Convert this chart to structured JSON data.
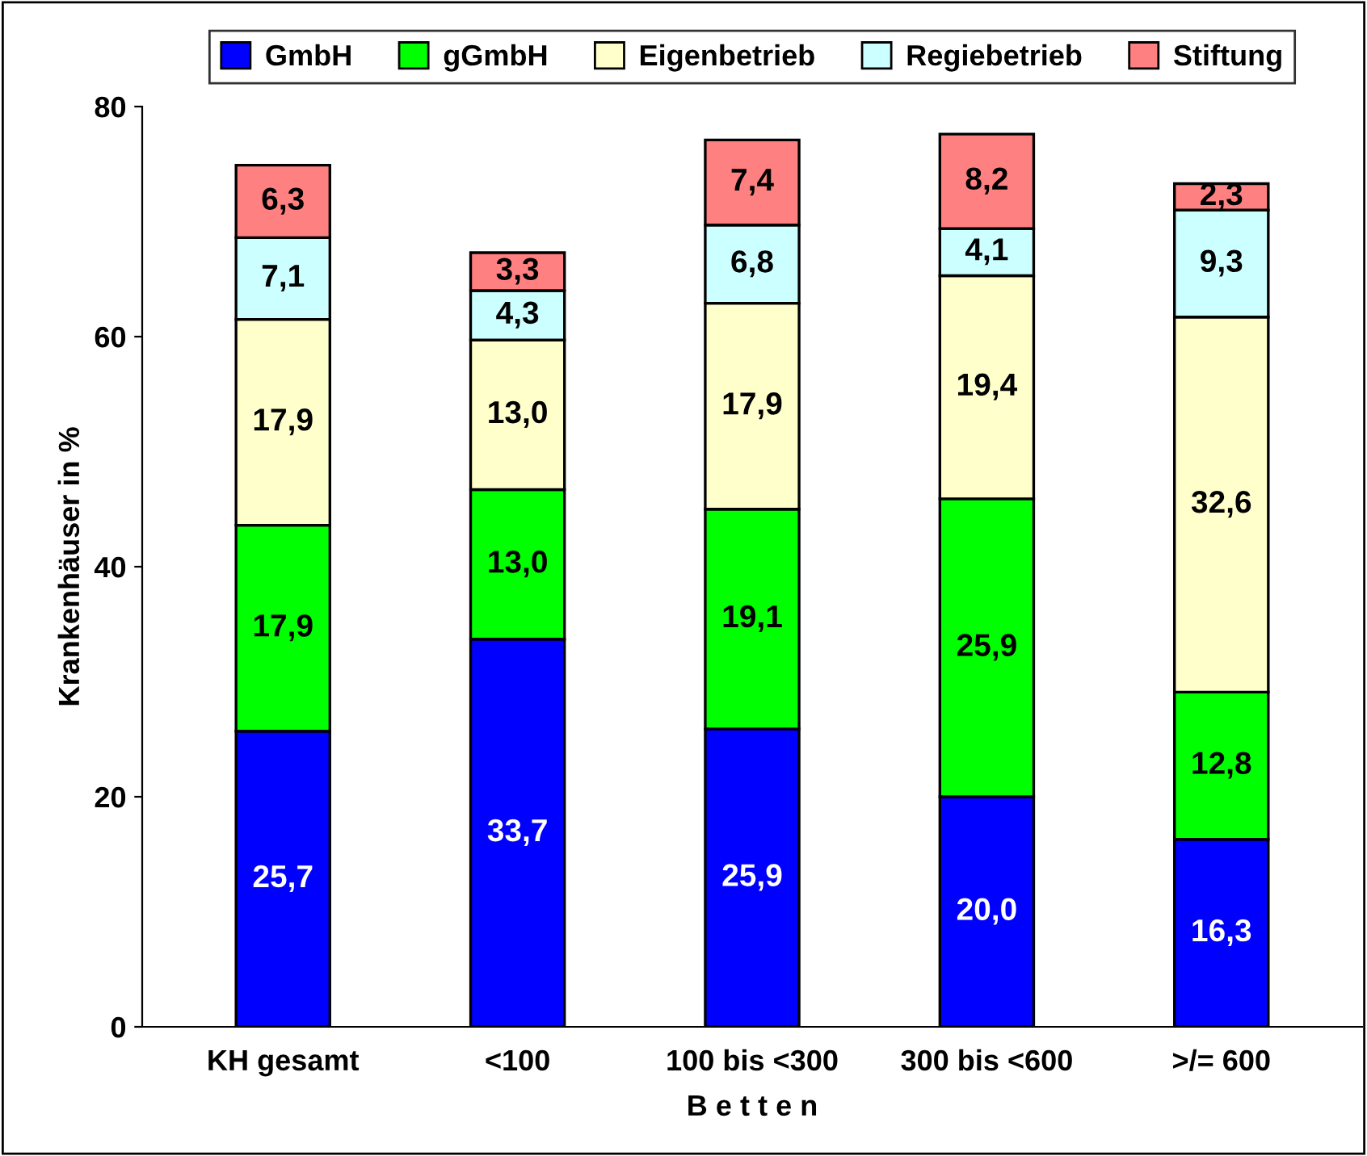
{
  "chart_data": {
    "type": "bar",
    "stacked": true,
    "ylabel": "Krankenhäuser in %",
    "xlabel": "B e t t e n",
    "categories": [
      "KH gesamt",
      "<100",
      "100 bis <300",
      "300 bis <600",
      ">/= 600"
    ],
    "series": [
      {
        "name": "GmbH",
        "color": "#0000ff",
        "values": [
          25.7,
          33.7,
          25.9,
          20.0,
          16.3
        ],
        "value_labels": [
          "25,7",
          "33,7",
          "25,9",
          "20,0",
          "16,3"
        ]
      },
      {
        "name": "gGmbH",
        "color": "#00ff00",
        "values": [
          17.9,
          13.0,
          19.1,
          25.9,
          12.8
        ],
        "value_labels": [
          "17,9",
          "13,0",
          "19,1",
          "25,9",
          "12,8"
        ]
      },
      {
        "name": "Eigenbetrieb",
        "color": "#ffffcc",
        "values": [
          17.9,
          13.0,
          17.9,
          19.4,
          32.6
        ],
        "value_labels": [
          "17,9",
          "13,0",
          "17,9",
          "19,4",
          "32,6"
        ]
      },
      {
        "name": "Regiebetrieb",
        "color": "#ccffff",
        "values": [
          7.1,
          4.3,
          6.8,
          4.1,
          9.3
        ],
        "value_labels": [
          "7,1",
          "4,3",
          "6,8",
          "4,1",
          "9,3"
        ]
      },
      {
        "name": "Stiftung",
        "color": "#ff8080",
        "values": [
          6.3,
          3.3,
          7.4,
          8.2,
          2.3
        ],
        "value_labels": [
          "6,3",
          "3,3",
          "7,4",
          "8,2",
          "2,3"
        ]
      }
    ],
    "ylim": [
      0,
      80
    ],
    "yticks": [
      0,
      20,
      40,
      60,
      80
    ],
    "grid": false,
    "legend": "top"
  }
}
